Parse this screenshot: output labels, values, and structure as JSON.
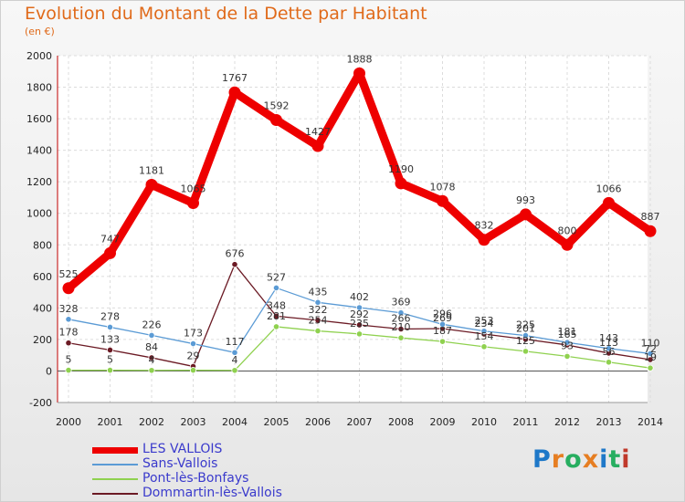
{
  "title": "Evolution du Montant de la Dette par Habitant",
  "subtitle": "(en €)",
  "logo": {
    "text": "Proxiti",
    "letter_colors": [
      "#1e78c8",
      "#e67e22",
      "#27ae60",
      "#e67e22",
      "#1e78c8",
      "#27ae60",
      "#c0392b"
    ]
  },
  "chart_data": {
    "type": "line",
    "title": "Evolution du Montant de la Dette par Habitant",
    "subtitle": "(en €)",
    "xlabel": "",
    "ylabel": "",
    "ylim": [
      -200,
      2000
    ],
    "yticks": [
      "-200",
      "0",
      "200",
      "400",
      "600",
      "800",
      "1000",
      "1200",
      "1400",
      "1600",
      "1800",
      "2000"
    ],
    "categories": [
      "2000",
      "2001",
      "2002",
      "2003",
      "2004",
      "2005",
      "2006",
      "2007",
      "2008",
      "2009",
      "2010",
      "2011",
      "2012",
      "2013",
      "2014"
    ],
    "grid": true,
    "legend_position": "bottom-left",
    "series": [
      {
        "name": "LES VALLOIS",
        "color": "#ee0000",
        "values": [
          525,
          747,
          1181,
          1065,
          1767,
          1592,
          1427,
          1888,
          1190,
          1078,
          832,
          993,
          800,
          1066,
          887
        ],
        "labels": [
          "525",
          "747",
          "1181",
          "1065",
          "1767",
          "1592",
          "1427",
          "1888",
          "1190",
          "1078",
          "832",
          "993",
          "800",
          "1066",
          "887"
        ]
      },
      {
        "name": "Sans-Vallois",
        "color": "#5b9bd5",
        "values": [
          328,
          278,
          226,
          173,
          117,
          527,
          435,
          402,
          369,
          296,
          253,
          225,
          181,
          143,
          110
        ],
        "labels": [
          "328",
          "278",
          "226",
          "173",
          "117",
          "527",
          "435",
          "402",
          "369",
          "296",
          "253",
          "225",
          "181",
          "143",
          "110"
        ]
      },
      {
        "name": "Pont-lès-Bonfays",
        "color": "#8fd14f",
        "values": [
          5,
          5,
          4,
          5,
          4,
          281,
          254,
          235,
          210,
          187,
          154,
          125,
          93,
          56,
          19
        ],
        "labels": [
          "5",
          "5",
          "4",
          "",
          "4",
          "281",
          "254",
          "235",
          "210",
          "187",
          "154",
          "125",
          "93",
          "56",
          "19"
        ]
      },
      {
        "name": "Dommartin-lès-Vallois",
        "color": "#6b1a24",
        "values": [
          178,
          133,
          84,
          29,
          676,
          348,
          322,
          292,
          266,
          269,
          234,
          201,
          165,
          113,
          72
        ],
        "labels": [
          "178",
          "133",
          "84",
          "29",
          "676",
          "348",
          "322",
          "292",
          "266",
          "269",
          "234",
          "201",
          "165",
          "113",
          "72"
        ]
      }
    ]
  }
}
